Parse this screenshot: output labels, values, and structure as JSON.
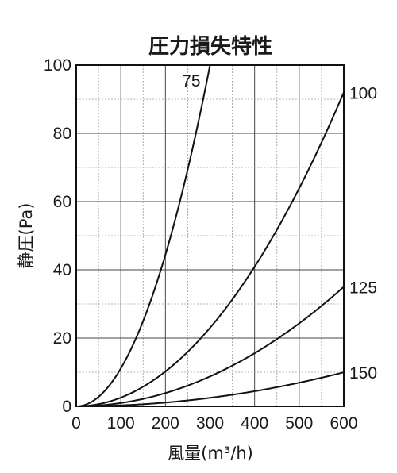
{
  "chart_data": {
    "type": "line",
    "title": "圧力損失特性",
    "xlabel": "風量(m³/h)",
    "ylabel": "静圧(Pa)",
    "xlim": [
      0,
      600
    ],
    "ylim": [
      0,
      100
    ],
    "x_major_ticks": [
      0,
      100,
      200,
      300,
      400,
      500,
      600
    ],
    "y_major_ticks": [
      0,
      20,
      40,
      60,
      80,
      100
    ],
    "x_minor_step": 50,
    "y_minor_step": 10,
    "grid": true,
    "x_tick_labels": [
      "0",
      "100",
      "200",
      "300",
      "400",
      "500",
      "600"
    ],
    "y_tick_labels": [
      "0",
      "20",
      "40",
      "60",
      "80",
      "100"
    ],
    "series": [
      {
        "name": "75",
        "x": [
          0,
          50,
          100,
          150,
          200,
          250,
          300
        ],
        "values": [
          0,
          2.8,
          11.1,
          25,
          44.4,
          69.4,
          100
        ]
      },
      {
        "name": "100",
        "x": [
          0,
          100,
          200,
          300,
          400,
          500,
          600
        ],
        "values": [
          0,
          2.6,
          10.2,
          23,
          40.9,
          63.9,
          92
        ]
      },
      {
        "name": "125",
        "x": [
          0,
          100,
          200,
          300,
          400,
          500,
          600
        ],
        "values": [
          0,
          1,
          3.9,
          8.8,
          15.6,
          24.3,
          35
        ]
      },
      {
        "name": "150",
        "x": [
          0,
          100,
          200,
          300,
          400,
          500,
          600
        ],
        "values": [
          0,
          0.3,
          1.1,
          2.5,
          4.4,
          6.9,
          10
        ]
      }
    ]
  }
}
